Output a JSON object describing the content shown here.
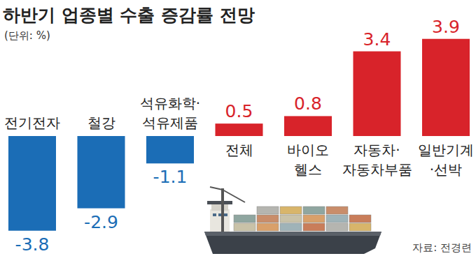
{
  "chart_data": {
    "type": "bar",
    "title": "하반기 업종별 수출 증감률 전망",
    "subtitle": "(단위: %)",
    "source": "자료: 전경련",
    "categories": [
      "전기전자",
      "철강",
      "석유화학·\n석유제품",
      "전체",
      "바이오\n헬스",
      "자동차·\n자동차부품",
      "일반기계\n·선박"
    ],
    "values": [
      -3.8,
      -2.9,
      -1.1,
      0.5,
      0.8,
      3.4,
      3.9
    ],
    "colors": [
      "#1b6db6",
      "#1b6db6",
      "#1b6db6",
      "#d8232a",
      "#d8232a",
      "#d8232a",
      "#d8232a"
    ],
    "ylim": [
      -4.2,
      4.2
    ],
    "grid": false,
    "data_labels": true,
    "tick_labels": false
  }
}
